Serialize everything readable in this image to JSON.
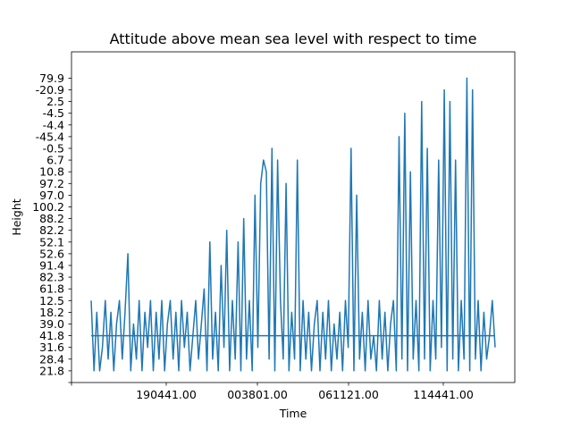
{
  "chart_data": {
    "type": "line",
    "title": "Attitude above mean sea level with respect to time",
    "xlabel": "Time",
    "ylabel": "Height",
    "grid": false,
    "color": "#1f77b4",
    "x_tick_labels": [
      "190441.00",
      "003801.00",
      "061121.00",
      "114441.00"
    ],
    "y_tick_labels": [
      "",
      "21.8",
      "28.4",
      "31.6",
      "41.8",
      "39.0",
      "18.2",
      "12.5",
      "61.8",
      "82.3",
      "91.4",
      "52.6",
      "52.1",
      "82.2",
      "88.2",
      "100.2",
      "97.0",
      "97.2",
      "10.8",
      "6.7",
      "-0.5",
      "-45.4",
      "-4.4",
      "-4.5",
      "2.5",
      "-20.9",
      "79.9"
    ],
    "y_axis_note": "categorical axis: tick labels appear in order of first occurrence",
    "series": [
      {
        "values": [
          7,
          1,
          6,
          1,
          3,
          7,
          2,
          6,
          1,
          5,
          7,
          2,
          6,
          11,
          1,
          5,
          2,
          7,
          1,
          6,
          3,
          7,
          1,
          6,
          2,
          7,
          1,
          5,
          7,
          2,
          6,
          1,
          7,
          3,
          6,
          1,
          4,
          7,
          2,
          5,
          8,
          1,
          12,
          2,
          6,
          1,
          10,
          3,
          13,
          1,
          7,
          2,
          12,
          1,
          14,
          2,
          7,
          1,
          16,
          3,
          17,
          19,
          18,
          2,
          20,
          1,
          19,
          7,
          2,
          17,
          1,
          6,
          2,
          19,
          1,
          7,
          2,
          6,
          1,
          5,
          7,
          1,
          6,
          2,
          7,
          1,
          5,
          2,
          6,
          1,
          7,
          3,
          20,
          1,
          16,
          2,
          6,
          1,
          7,
          2,
          4,
          1,
          7,
          2,
          6,
          1,
          5,
          7,
          1,
          21,
          2,
          23,
          1,
          18,
          2,
          7,
          1,
          24,
          2,
          20,
          1,
          7,
          2,
          19,
          3,
          25,
          1,
          24,
          2,
          19,
          1,
          7,
          2,
          26,
          1,
          25,
          2,
          7,
          1,
          6,
          2,
          4,
          7,
          3
        ]
      }
    ]
  }
}
